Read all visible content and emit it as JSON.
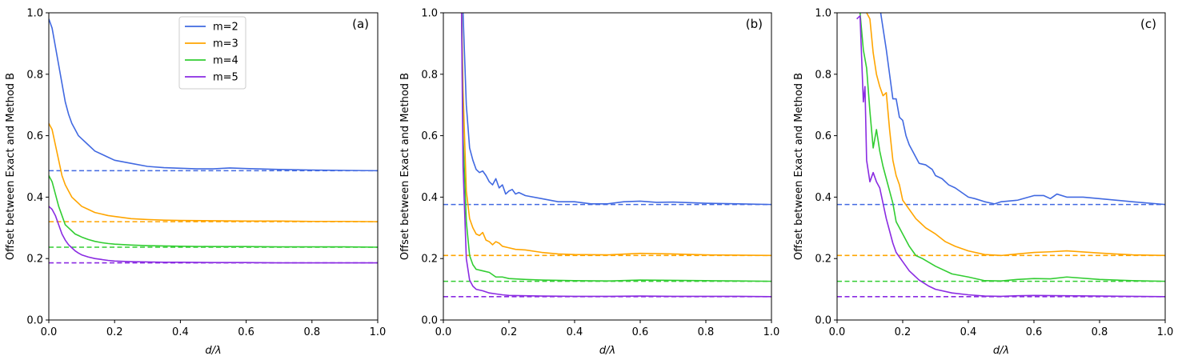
{
  "chart_data": [
    {
      "type": "line",
      "panel_label": "(a)",
      "xlabel": "d/λ",
      "ylabel": "Offset between Exact and Method B",
      "xlim": [
        0,
        1
      ],
      "ylim": [
        0,
        1
      ],
      "xticks": [
        "0.0",
        "0.2",
        "0.4",
        "0.6",
        "0.8",
        "1.0"
      ],
      "yticks": [
        "0.0",
        "0.2",
        "0.4",
        "0.6",
        "0.8",
        "1.0"
      ],
      "grid": false,
      "legend": {
        "placement": "upper-center"
      },
      "series": [
        {
          "name": "m=2",
          "color": "#4169E1",
          "x": [
            0.0,
            0.01,
            0.02,
            0.03,
            0.04,
            0.05,
            0.06,
            0.07,
            0.08,
            0.09,
            0.1,
            0.12,
            0.14,
            0.16,
            0.18,
            0.2,
            0.25,
            0.3,
            0.35,
            0.4,
            0.45,
            0.5,
            0.55,
            0.6,
            0.7,
            0.8,
            0.9,
            1.0
          ],
          "y": [
            0.98,
            0.95,
            0.89,
            0.83,
            0.77,
            0.71,
            0.67,
            0.64,
            0.62,
            0.6,
            0.59,
            0.57,
            0.55,
            0.54,
            0.53,
            0.52,
            0.51,
            0.5,
            0.496,
            0.494,
            0.492,
            0.492,
            0.495,
            0.493,
            0.49,
            0.488,
            0.487,
            0.486
          ],
          "asymptote": 0.486
        },
        {
          "name": "m=3",
          "color": "#FFA500",
          "x": [
            0.0,
            0.01,
            0.02,
            0.03,
            0.04,
            0.05,
            0.06,
            0.07,
            0.08,
            0.09,
            0.1,
            0.12,
            0.14,
            0.16,
            0.18,
            0.2,
            0.25,
            0.3,
            0.35,
            0.4,
            0.5,
            0.6,
            0.7,
            0.8,
            0.9,
            1.0
          ],
          "y": [
            0.64,
            0.62,
            0.57,
            0.52,
            0.47,
            0.44,
            0.42,
            0.4,
            0.39,
            0.38,
            0.37,
            0.36,
            0.35,
            0.345,
            0.34,
            0.337,
            0.33,
            0.327,
            0.325,
            0.324,
            0.323,
            0.322,
            0.322,
            0.321,
            0.321,
            0.32
          ],
          "asymptote": 0.32
        },
        {
          "name": "m=4",
          "color": "#32CD32",
          "x": [
            0.0,
            0.01,
            0.02,
            0.03,
            0.04,
            0.05,
            0.06,
            0.07,
            0.08,
            0.09,
            0.1,
            0.12,
            0.14,
            0.16,
            0.18,
            0.2,
            0.25,
            0.3,
            0.35,
            0.4,
            0.5,
            0.6,
            0.7,
            0.8,
            0.9,
            1.0
          ],
          "y": [
            0.47,
            0.45,
            0.41,
            0.37,
            0.34,
            0.31,
            0.3,
            0.29,
            0.28,
            0.275,
            0.27,
            0.262,
            0.256,
            0.252,
            0.249,
            0.247,
            0.244,
            0.242,
            0.241,
            0.24,
            0.239,
            0.239,
            0.238,
            0.238,
            0.238,
            0.237
          ],
          "asymptote": 0.237
        },
        {
          "name": "m=5",
          "color": "#8A2BE2",
          "x": [
            0.0,
            0.01,
            0.02,
            0.03,
            0.04,
            0.05,
            0.06,
            0.07,
            0.08,
            0.09,
            0.1,
            0.12,
            0.14,
            0.16,
            0.18,
            0.2,
            0.25,
            0.3,
            0.35,
            0.4,
            0.5,
            0.6,
            0.7,
            0.8,
            0.9,
            1.0
          ],
          "y": [
            0.37,
            0.36,
            0.34,
            0.31,
            0.28,
            0.26,
            0.245,
            0.235,
            0.225,
            0.218,
            0.212,
            0.205,
            0.2,
            0.197,
            0.194,
            0.192,
            0.19,
            0.189,
            0.188,
            0.188,
            0.187,
            0.187,
            0.186,
            0.186,
            0.186,
            0.186
          ],
          "asymptote": 0.186
        }
      ]
    },
    {
      "type": "line",
      "panel_label": "(b)",
      "xlabel": "d/λ",
      "ylabel": "Offset between Exact and Method B",
      "xlim": [
        0,
        1
      ],
      "ylim": [
        0,
        1
      ],
      "xticks": [
        "0.0",
        "0.2",
        "0.4",
        "0.6",
        "0.8",
        "1.0"
      ],
      "yticks": [
        "0.0",
        "0.2",
        "0.4",
        "0.6",
        "0.8",
        "1.0"
      ],
      "grid": false,
      "series": [
        {
          "color": "#4169E1",
          "x": [
            0.05,
            0.06,
            0.07,
            0.08,
            0.09,
            0.1,
            0.11,
            0.12,
            0.13,
            0.14,
            0.15,
            0.16,
            0.17,
            0.18,
            0.19,
            0.2,
            0.21,
            0.22,
            0.23,
            0.25,
            0.3,
            0.35,
            0.4,
            0.45,
            0.5,
            0.55,
            0.6,
            0.65,
            0.7,
            0.8,
            0.9,
            1.0
          ],
          "y": [
            1.05,
            1.0,
            0.7,
            0.56,
            0.52,
            0.49,
            0.48,
            0.485,
            0.47,
            0.45,
            0.44,
            0.46,
            0.43,
            0.44,
            0.41,
            0.42,
            0.425,
            0.41,
            0.415,
            0.405,
            0.395,
            0.385,
            0.385,
            0.378,
            0.378,
            0.385,
            0.387,
            0.383,
            0.384,
            0.38,
            0.378,
            0.376
          ],
          "asymptote": 0.376
        },
        {
          "color": "#FFA500",
          "x": [
            0.055,
            0.06,
            0.07,
            0.08,
            0.09,
            0.1,
            0.11,
            0.12,
            0.13,
            0.14,
            0.15,
            0.16,
            0.17,
            0.18,
            0.2,
            0.22,
            0.25,
            0.3,
            0.35,
            0.4,
            0.5,
            0.6,
            0.7,
            0.8,
            0.9,
            1.0
          ],
          "y": [
            1.05,
            0.75,
            0.42,
            0.33,
            0.3,
            0.28,
            0.275,
            0.285,
            0.26,
            0.255,
            0.245,
            0.255,
            0.25,
            0.24,
            0.235,
            0.23,
            0.228,
            0.22,
            0.215,
            0.213,
            0.212,
            0.217,
            0.215,
            0.212,
            0.211,
            0.21
          ],
          "asymptote": 0.21
        },
        {
          "color": "#32CD32",
          "x": [
            0.055,
            0.06,
            0.07,
            0.08,
            0.09,
            0.1,
            0.12,
            0.14,
            0.16,
            0.18,
            0.2,
            0.25,
            0.3,
            0.4,
            0.5,
            0.6,
            0.7,
            0.8,
            0.9,
            1.0
          ],
          "y": [
            1.05,
            0.6,
            0.32,
            0.21,
            0.18,
            0.165,
            0.16,
            0.155,
            0.14,
            0.14,
            0.135,
            0.132,
            0.13,
            0.128,
            0.127,
            0.13,
            0.129,
            0.128,
            0.127,
            0.126
          ],
          "asymptote": 0.126
        },
        {
          "color": "#8A2BE2",
          "x": [
            0.055,
            0.06,
            0.07,
            0.08,
            0.09,
            0.1,
            0.12,
            0.14,
            0.16,
            0.18,
            0.2,
            0.25,
            0.3,
            0.4,
            0.5,
            0.6,
            0.7,
            0.8,
            0.9,
            1.0
          ],
          "y": [
            1.05,
            0.5,
            0.2,
            0.13,
            0.11,
            0.1,
            0.095,
            0.088,
            0.085,
            0.082,
            0.08,
            0.079,
            0.078,
            0.077,
            0.077,
            0.078,
            0.077,
            0.077,
            0.077,
            0.076
          ],
          "asymptote": 0.076
        }
      ]
    },
    {
      "type": "line",
      "panel_label": "(c)",
      "xlabel": "d/λ",
      "ylabel": "Offset between Exact and Method B",
      "xlim": [
        0,
        1
      ],
      "ylim": [
        0,
        1
      ],
      "xticks": [
        "0.0",
        "0.2",
        "0.4",
        "0.6",
        "0.8",
        "1.0"
      ],
      "yticks": [
        "0.0",
        "0.2",
        "0.4",
        "0.6",
        "0.8",
        "1.0"
      ],
      "grid": false,
      "series": [
        {
          "color": "#4169E1",
          "x": [
            0.13,
            0.14,
            0.15,
            0.16,
            0.17,
            0.18,
            0.19,
            0.2,
            0.21,
            0.22,
            0.23,
            0.24,
            0.25,
            0.27,
            0.29,
            0.3,
            0.32,
            0.34,
            0.36,
            0.38,
            0.4,
            0.42,
            0.45,
            0.48,
            0.5,
            0.55,
            0.6,
            0.63,
            0.65,
            0.67,
            0.7,
            0.75,
            0.8,
            0.9,
            1.0
          ],
          "y": [
            1.02,
            0.95,
            0.88,
            0.8,
            0.72,
            0.72,
            0.66,
            0.65,
            0.6,
            0.57,
            0.55,
            0.53,
            0.51,
            0.505,
            0.49,
            0.47,
            0.46,
            0.44,
            0.43,
            0.415,
            0.4,
            0.395,
            0.385,
            0.378,
            0.385,
            0.39,
            0.405,
            0.405,
            0.395,
            0.41,
            0.4,
            0.4,
            0.395,
            0.385,
            0.376
          ],
          "asymptote": 0.376
        },
        {
          "color": "#FFA500",
          "x": [
            0.09,
            0.1,
            0.11,
            0.12,
            0.13,
            0.14,
            0.15,
            0.16,
            0.17,
            0.18,
            0.19,
            0.2,
            0.22,
            0.24,
            0.25,
            0.27,
            0.3,
            0.33,
            0.36,
            0.4,
            0.45,
            0.5,
            0.55,
            0.6,
            0.65,
            0.7,
            0.8,
            0.9,
            1.0
          ],
          "y": [
            1.0,
            0.98,
            0.87,
            0.8,
            0.76,
            0.73,
            0.74,
            0.62,
            0.52,
            0.47,
            0.44,
            0.39,
            0.36,
            0.33,
            0.32,
            0.3,
            0.28,
            0.255,
            0.24,
            0.225,
            0.213,
            0.21,
            0.215,
            0.22,
            0.222,
            0.225,
            0.218,
            0.212,
            0.21
          ],
          "asymptote": 0.21
        },
        {
          "color": "#32CD32",
          "x": [
            0.07,
            0.08,
            0.09,
            0.1,
            0.11,
            0.12,
            0.13,
            0.14,
            0.15,
            0.16,
            0.17,
            0.18,
            0.19,
            0.2,
            0.22,
            0.24,
            0.26,
            0.3,
            0.35,
            0.4,
            0.45,
            0.5,
            0.55,
            0.6,
            0.65,
            0.7,
            0.8,
            0.9,
            1.0
          ],
          "y": [
            1.0,
            0.88,
            0.82,
            0.68,
            0.56,
            0.62,
            0.55,
            0.5,
            0.46,
            0.42,
            0.38,
            0.32,
            0.3,
            0.28,
            0.24,
            0.21,
            0.2,
            0.175,
            0.15,
            0.14,
            0.128,
            0.127,
            0.132,
            0.135,
            0.134,
            0.14,
            0.132,
            0.128,
            0.126
          ],
          "asymptote": 0.126
        },
        {
          "color": "#8A2BE2",
          "x": [
            0.06,
            0.07,
            0.08,
            0.085,
            0.09,
            0.1,
            0.11,
            0.12,
            0.13,
            0.14,
            0.15,
            0.16,
            0.17,
            0.18,
            0.2,
            0.22,
            0.25,
            0.28,
            0.3,
            0.35,
            0.4,
            0.45,
            0.5,
            0.55,
            0.6,
            0.7,
            0.8,
            0.9,
            1.0
          ],
          "y": [
            0.98,
            0.99,
            0.71,
            0.76,
            0.52,
            0.45,
            0.48,
            0.45,
            0.43,
            0.38,
            0.33,
            0.29,
            0.25,
            0.22,
            0.19,
            0.16,
            0.13,
            0.11,
            0.1,
            0.088,
            0.082,
            0.078,
            0.077,
            0.079,
            0.08,
            0.079,
            0.078,
            0.077,
            0.076
          ],
          "asymptote": 0.076
        }
      ]
    }
  ]
}
